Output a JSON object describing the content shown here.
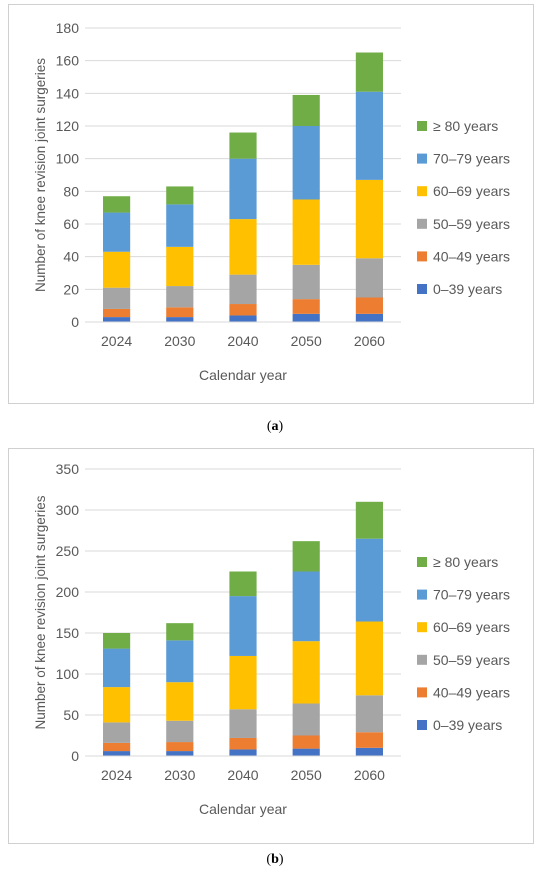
{
  "charts": [
    {
      "caption": {
        "open": "(",
        "letter": "a",
        "close": ")"
      },
      "chart_data": {
        "type": "bar",
        "stacked": true,
        "categories": [
          "2024",
          "2030",
          "2040",
          "2050",
          "2060"
        ],
        "xlabel": "Calendar year",
        "ylabel": "Number of knee revision joint surgeries",
        "ylim": [
          0,
          180
        ],
        "yticks": [
          0,
          20,
          40,
          60,
          80,
          100,
          120,
          140,
          160,
          180
        ],
        "grid": true,
        "legend_position": "right",
        "series": [
          {
            "name": "0–39 years",
            "color": "#4472C4",
            "values": [
              3,
              3,
              4,
              5,
              5
            ]
          },
          {
            "name": "40–49 years",
            "color": "#ED7D31",
            "values": [
              5,
              6,
              7,
              9,
              10
            ]
          },
          {
            "name": "50–59 years",
            "color": "#A5A5A5",
            "values": [
              13,
              13,
              18,
              21,
              24
            ]
          },
          {
            "name": "60–69 years",
            "color": "#FFC000",
            "values": [
              22,
              24,
              34,
              40,
              48
            ]
          },
          {
            "name": "70–79 years",
            "color": "#5B9BD5",
            "values": [
              24,
              26,
              37,
              45,
              54
            ]
          },
          {
            "name": "≥ 80 years",
            "color": "#70AD47",
            "values": [
              10,
              11,
              16,
              19,
              24
            ]
          }
        ]
      }
    },
    {
      "caption": {
        "open": "(",
        "letter": "b",
        "close": ")"
      },
      "chart_data": {
        "type": "bar",
        "stacked": true,
        "categories": [
          "2024",
          "2030",
          "2040",
          "2050",
          "2060"
        ],
        "xlabel": "Calendar year",
        "ylabel": "Number of knee revision joint surgeries",
        "ylim": [
          0,
          350
        ],
        "yticks": [
          0,
          50,
          100,
          150,
          200,
          250,
          300,
          350
        ],
        "grid": true,
        "legend_position": "right",
        "series": [
          {
            "name": "0–39 years",
            "color": "#4472C4",
            "values": [
              6,
              6,
              8,
              9,
              10
            ]
          },
          {
            "name": "40–49 years",
            "color": "#ED7D31",
            "values": [
              10,
              11,
              14,
              16,
              19
            ]
          },
          {
            "name": "50–59 years",
            "color": "#A5A5A5",
            "values": [
              25,
              26,
              35,
              39,
              45
            ]
          },
          {
            "name": "60–69 years",
            "color": "#FFC000",
            "values": [
              43,
              47,
              65,
              76,
              90
            ]
          },
          {
            "name": "70–79 years",
            "color": "#5B9BD5",
            "values": [
              47,
              51,
              73,
              85,
              101
            ]
          },
          {
            "name": "≥ 80 years",
            "color": "#70AD47",
            "values": [
              19,
              21,
              30,
              37,
              45
            ]
          }
        ]
      }
    }
  ]
}
